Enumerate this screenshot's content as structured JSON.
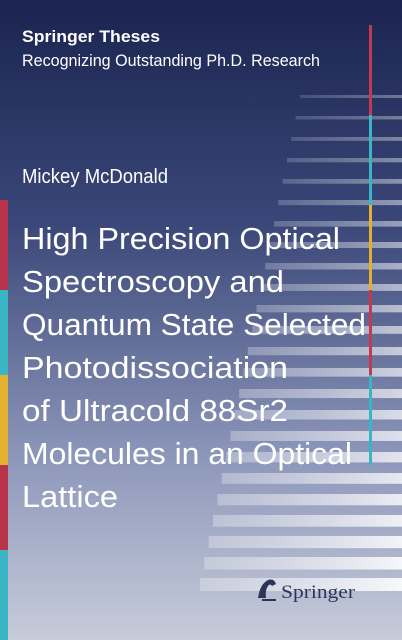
{
  "series": {
    "name": "Springer Theses",
    "subtitle": "Recognizing Outstanding Ph.D. Research"
  },
  "author": "Mickey McDonald",
  "title_lines": [
    "High Precision Optical",
    "Spectroscopy and",
    "Quantum State Selected",
    "Photodissociation",
    "of Ultracold 88Sr2",
    "Molecules in an Optical",
    "Lattice"
  ],
  "publisher": "Springer"
}
